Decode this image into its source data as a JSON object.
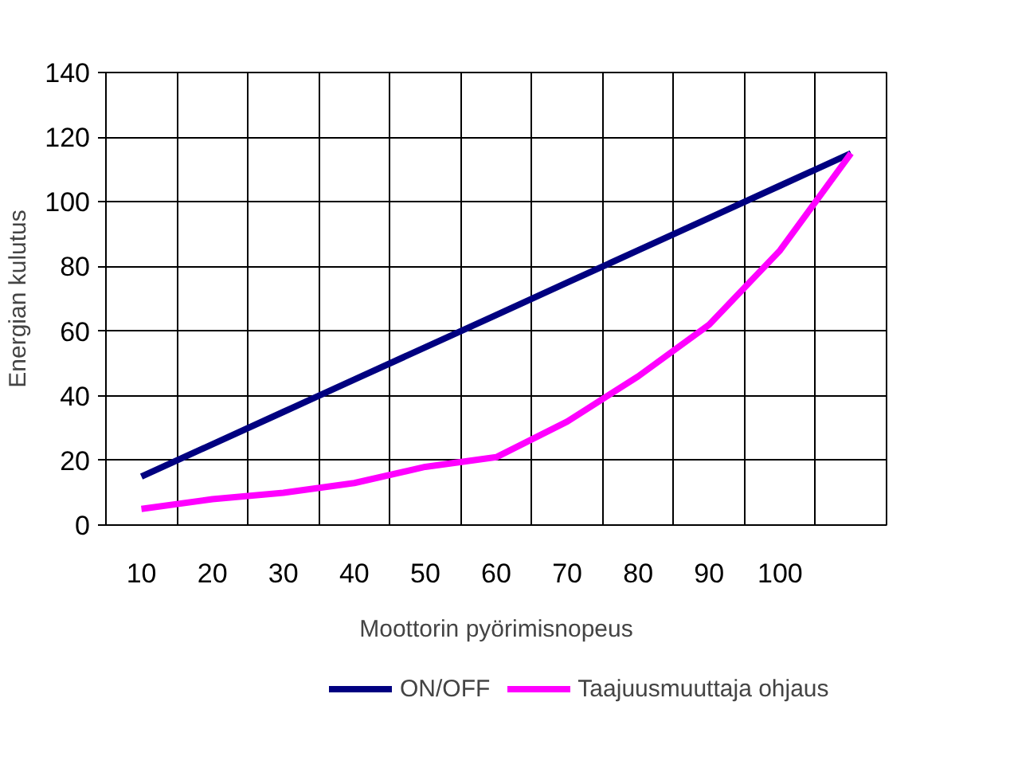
{
  "chart_data": {
    "type": "line",
    "xlabel": "Moottorin pyörimisnopeus",
    "ylabel": "Energian kulutus",
    "categories": [
      "10",
      "20",
      "30",
      "40",
      "50",
      "60",
      "70",
      "80",
      "90",
      "100",
      null
    ],
    "series": [
      {
        "name": "ON/OFF",
        "color": "#000080",
        "values": [
          15,
          25,
          35,
          45,
          55,
          65,
          75,
          85,
          95,
          105,
          115
        ]
      },
      {
        "name": "Taajuusmuuttaja ohjaus",
        "color": "#ff00ff",
        "values": [
          5,
          8,
          10,
          13,
          18,
          21,
          32,
          46,
          62,
          85,
          115
        ]
      }
    ],
    "ylim": [
      0,
      140
    ],
    "yticks": [
      0,
      20,
      40,
      60,
      80,
      100,
      120,
      140
    ],
    "grid": true,
    "legend": "bottom",
    "marker": "none",
    "line_style": "solid"
  }
}
